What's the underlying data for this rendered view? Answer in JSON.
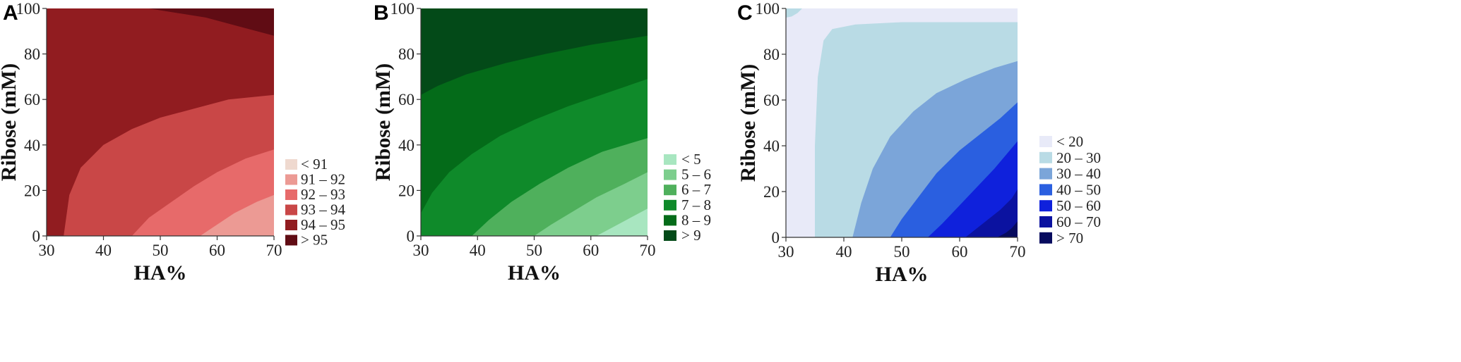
{
  "chart_data": [
    {
      "panel": "A",
      "type": "contour",
      "xlabel": "HA%",
      "ylabel": "Ribose (mM)",
      "xlim": [
        30,
        70
      ],
      "ylim": [
        0,
        100
      ],
      "x_ticks": [
        "30",
        "40",
        "50",
        "60",
        "70"
      ],
      "y_ticks": [
        "0",
        "20",
        "40",
        "60",
        "80",
        "100"
      ],
      "legend_position": "right-bottom",
      "levels": [
        {
          "label": "< 91",
          "color": "#efd9cf"
        },
        {
          "label": "91 – 92",
          "color": "#ec9a94"
        },
        {
          "label": "92 – 93",
          "color": "#e76a6a"
        },
        {
          "label": "93 – 94",
          "color": "#c94747"
        },
        {
          "label": "94 – 95",
          "color": "#911c20"
        },
        {
          "label": "> 95",
          "color": "#600c14"
        }
      ],
      "contours": [
        {
          "level_index": 5,
          "points": [
            [
              48,
              100
            ],
            [
              58,
              96
            ],
            [
              64,
              92
            ],
            [
              70,
              88
            ]
          ]
        },
        {
          "level_index": 3,
          "points": [
            [
              33,
              0
            ],
            [
              34,
              18
            ],
            [
              36,
              30
            ],
            [
              40,
              40
            ],
            [
              45,
              47
            ],
            [
              50,
              52
            ],
            [
              56,
              56
            ],
            [
              62,
              60
            ],
            [
              70,
              62
            ]
          ]
        },
        {
          "level_index": 2,
          "points": [
            [
              45,
              0
            ],
            [
              48,
              8
            ],
            [
              52,
              15
            ],
            [
              56,
              22
            ],
            [
              60,
              28
            ],
            [
              65,
              34
            ],
            [
              70,
              38
            ]
          ]
        },
        {
          "level_index": 1,
          "points": [
            [
              57,
              0
            ],
            [
              60,
              5
            ],
            [
              63,
              10
            ],
            [
              67,
              15
            ],
            [
              70,
              18
            ]
          ]
        }
      ]
    },
    {
      "panel": "B",
      "type": "contour",
      "xlabel": "HA%",
      "ylabel": "Ribose (mM)",
      "xlim": [
        30,
        70
      ],
      "ylim": [
        0,
        100
      ],
      "x_ticks": [
        "30",
        "40",
        "50",
        "60",
        "70"
      ],
      "y_ticks": [
        "0",
        "20",
        "40",
        "60",
        "80",
        "100"
      ],
      "legend_position": "right-bottom",
      "levels": [
        {
          "label": "< 5",
          "color": "#a8e6c0"
        },
        {
          "label": "5 – 6",
          "color": "#7dce8d"
        },
        {
          "label": "6 – 7",
          "color": "#4fb05c"
        },
        {
          "label": "7 – 8",
          "color": "#0f8a2a"
        },
        {
          "label": "8 – 9",
          "color": "#046b19"
        },
        {
          "label": "> 9",
          "color": "#034a18"
        }
      ],
      "contours": [
        {
          "level_index": 4,
          "points": [
            [
              30,
              62
            ],
            [
              33,
              66
            ],
            [
              38,
              71
            ],
            [
              45,
              76
            ],
            [
              52,
              80
            ],
            [
              60,
              84
            ],
            [
              70,
              88
            ]
          ]
        },
        {
          "level_index": 3,
          "points": [
            [
              30,
              10
            ],
            [
              32,
              19
            ],
            [
              35,
              28
            ],
            [
              39,
              36
            ],
            [
              44,
              44
            ],
            [
              50,
              51
            ],
            [
              56,
              57
            ],
            [
              63,
              63
            ],
            [
              70,
              69
            ]
          ]
        },
        {
          "level_index": 2,
          "points": [
            [
              39,
              0
            ],
            [
              42,
              7
            ],
            [
              46,
              15
            ],
            [
              51,
              23
            ],
            [
              56,
              30
            ],
            [
              62,
              37
            ],
            [
              70,
              43
            ]
          ]
        },
        {
          "level_index": 1,
          "points": [
            [
              50,
              0
            ],
            [
              53,
              5
            ],
            [
              57,
              11
            ],
            [
              61,
              17
            ],
            [
              66,
              23
            ],
            [
              70,
              28
            ]
          ]
        },
        {
          "level_index": 0,
          "points": [
            [
              61,
              0
            ],
            [
              64,
              4
            ],
            [
              67,
              8
            ],
            [
              70,
              12
            ]
          ]
        }
      ]
    },
    {
      "panel": "C",
      "type": "contour",
      "xlabel": "HA%",
      "ylabel": "Ribose (mM)",
      "xlim": [
        30,
        70
      ],
      "ylim": [
        0,
        100
      ],
      "x_ticks": [
        "30",
        "40",
        "50",
        "60",
        "70"
      ],
      "y_ticks": [
        "0",
        "20",
        "40",
        "60",
        "80",
        "100"
      ],
      "legend_position": "right-bottom",
      "levels": [
        {
          "label": "< 20",
          "color": "#e8eaf8"
        },
        {
          "label": "20 – 30",
          "color": "#b9dbe5"
        },
        {
          "label": "30 – 40",
          "color": "#7ba5d9"
        },
        {
          "label": "40 – 50",
          "color": "#2a5fe0"
        },
        {
          "label": "50 – 60",
          "color": "#0f21dc"
        },
        {
          "label": "60 – 70",
          "color": "#0b12a0"
        },
        {
          "label": "> 70",
          "color": "#070b5e"
        }
      ],
      "contours": [
        {
          "level_index": 1,
          "points": [
            [
              35,
              0
            ],
            [
              35,
              40
            ],
            [
              35.5,
              70
            ],
            [
              36.5,
              86
            ],
            [
              38,
              91
            ],
            [
              42,
              93
            ],
            [
              50,
              94
            ],
            [
              70,
              94
            ]
          ]
        },
        {
          "level_index": 2,
          "points": [
            [
              41.5,
              0
            ],
            [
              43,
              15
            ],
            [
              45,
              30
            ],
            [
              48,
              44
            ],
            [
              52,
              55
            ],
            [
              56,
              63
            ],
            [
              61,
              69
            ],
            [
              66,
              74
            ],
            [
              70,
              77
            ]
          ]
        },
        {
          "level_index": 3,
          "points": [
            [
              48,
              0
            ],
            [
              50,
              8
            ],
            [
              53,
              18
            ],
            [
              56,
              28
            ],
            [
              60,
              38
            ],
            [
              64,
              46
            ],
            [
              67,
              52
            ],
            [
              70,
              59
            ]
          ]
        },
        {
          "level_index": 4,
          "points": [
            [
              54.5,
              0
            ],
            [
              57,
              6
            ],
            [
              60,
              14
            ],
            [
              63,
              22
            ],
            [
              66,
              30
            ],
            [
              68,
              36
            ],
            [
              70,
              42
            ]
          ]
        },
        {
          "level_index": 5,
          "points": [
            [
              61,
              0
            ],
            [
              63,
              4
            ],
            [
              65,
              8
            ],
            [
              67,
              12
            ],
            [
              69,
              17
            ],
            [
              70,
              21
            ]
          ]
        },
        {
          "level_index": 6,
          "points": [
            [
              66.5,
              0
            ],
            [
              68,
              2
            ],
            [
              69,
              4
            ],
            [
              70,
              7
            ]
          ]
        }
      ],
      "corner_patch": {
        "level_index": 1,
        "points": [
          [
            30,
            96
          ],
          [
            31,
            96.5
          ],
          [
            32,
            98
          ],
          [
            32.8,
            100
          ],
          [
            30,
            100
          ]
        ]
      }
    }
  ]
}
